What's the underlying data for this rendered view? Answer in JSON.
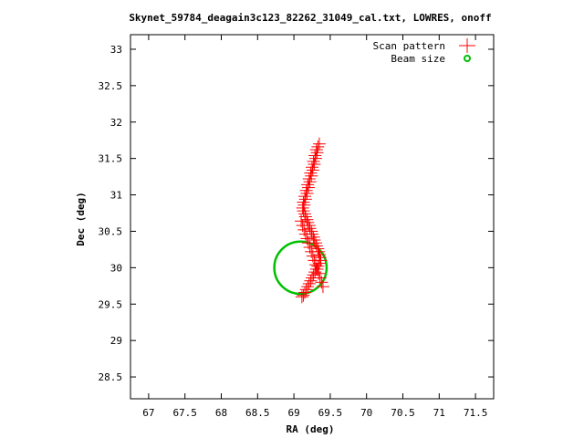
{
  "chart_data": {
    "type": "scatter",
    "title": "Skynet_59784_deagain3c123_82262_31049_cal.txt, LOWRES, onoff",
    "xlabel": "RA (deg)",
    "ylabel": "Dec (deg)",
    "xlim": [
      66.75,
      71.75
    ],
    "ylim": [
      28.2,
      33.2
    ],
    "xticks": [
      67,
      67.5,
      68,
      68.5,
      69,
      69.5,
      70,
      70.5,
      71,
      71.5
    ],
    "xtick_labels": [
      "67",
      "67.5",
      "68",
      "68.5",
      "69",
      "69.5",
      "70",
      "70.5",
      "71",
      "71.5"
    ],
    "yticks": [
      28.5,
      29,
      29.5,
      30,
      30.5,
      31,
      31.5,
      32,
      32.5,
      33
    ],
    "ytick_labels": [
      "28.5",
      "29",
      "29.5",
      "30",
      "30.5",
      "31",
      "31.5",
      "32",
      "32.5",
      "33"
    ],
    "grid": false,
    "legend_position": "top-right",
    "colors": {
      "scan": "#ff0000",
      "beam": "#00c000",
      "axis": "#000000"
    },
    "series": [
      {
        "name": "Scan pattern",
        "marker": "plus",
        "x": [
          69.35,
          69.33,
          69.31,
          69.32,
          69.29,
          69.3,
          69.27,
          69.28,
          69.25,
          69.26,
          69.23,
          69.24,
          69.21,
          69.22,
          69.19,
          69.2,
          69.17,
          69.18,
          69.15,
          69.16,
          69.13,
          69.14,
          69.12,
          69.13,
          69.15,
          69.16,
          69.18,
          69.19,
          69.21,
          69.22,
          69.24,
          69.25,
          69.27,
          69.28,
          69.3,
          69.31,
          69.33,
          69.34,
          69.35,
          69.36,
          69.37,
          69.35,
          69.33,
          69.31,
          69.29,
          69.27,
          69.25,
          69.23,
          69.21,
          69.19,
          69.17,
          69.15,
          69.13,
          69.11,
          69.1,
          69.12,
          69.14,
          69.16,
          69.18,
          69.2,
          69.22,
          69.24,
          69.26,
          69.28,
          69.3,
          69.32,
          69.34,
          69.36,
          69.38,
          69.4
        ],
        "y": [
          31.7,
          31.66,
          31.62,
          31.58,
          31.54,
          31.5,
          31.46,
          31.42,
          31.38,
          31.34,
          31.3,
          31.26,
          31.22,
          31.18,
          31.14,
          31.1,
          31.06,
          31.02,
          30.98,
          30.94,
          30.9,
          30.86,
          30.82,
          30.78,
          30.74,
          30.7,
          30.66,
          30.62,
          30.58,
          30.54,
          30.5,
          30.46,
          30.42,
          30.38,
          30.34,
          30.3,
          30.26,
          30.22,
          30.18,
          30.14,
          30.1,
          30.06,
          30.02,
          29.98,
          29.94,
          29.9,
          29.86,
          29.82,
          29.78,
          29.74,
          29.7,
          29.66,
          29.62,
          29.6,
          30.64,
          30.58,
          30.52,
          30.46,
          30.4,
          30.34,
          30.28,
          30.22,
          30.16,
          30.1,
          30.04,
          29.98,
          29.92,
          29.86,
          29.8,
          29.74
        ]
      },
      {
        "name": "Beam size",
        "marker": "circle",
        "center": [
          69.09,
          30.0
        ],
        "radius_deg": 0.36
      }
    ]
  }
}
